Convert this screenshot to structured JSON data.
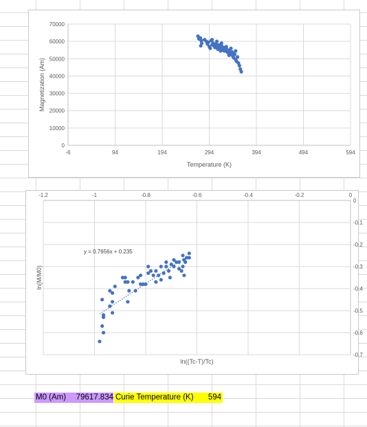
{
  "colors": {
    "marker": "#4472c4",
    "purple_cell": "#cc99ff",
    "yellow_cell": "#ffff00",
    "grid": "#d9d9d9"
  },
  "cells": {
    "m0_label": "M0 (Am)",
    "m0_value": "79617.834",
    "curie_label": "Curie Temperature (K)",
    "curie_value": "594"
  },
  "chart_data": [
    {
      "type": "scatter",
      "title": "",
      "xlabel": "Temperature (K)",
      "ylabel": "Magnetization (Am)",
      "xlim": [
        -6,
        594
      ],
      "ylim": [
        0,
        70000
      ],
      "xticks": [
        -6,
        94,
        194,
        294,
        394,
        494,
        594
      ],
      "yticks": [
        0,
        10000,
        20000,
        30000,
        40000,
        50000,
        60000,
        70000
      ],
      "grid": "major horizontal and vertical",
      "legend": "none",
      "series": [
        {
          "points": [
            [
              270,
              63000
            ],
            [
              272,
              61500
            ],
            [
              275,
              62000
            ],
            [
              277,
              60500
            ],
            [
              278,
              59000
            ],
            [
              276,
              57500
            ],
            [
              288,
              60000
            ],
            [
              290,
              58500
            ],
            [
              292,
              59500
            ],
            [
              294,
              57000
            ],
            [
              296,
              56000
            ],
            [
              298,
              60500
            ],
            [
              300,
              58000
            ],
            [
              302,
              59000
            ],
            [
              304,
              57500
            ],
            [
              306,
              56500
            ],
            [
              308,
              58500
            ],
            [
              310,
              57000
            ],
            [
              312,
              55500
            ],
            [
              314,
              58000
            ],
            [
              316,
              57000
            ],
            [
              318,
              56000
            ],
            [
              320,
              57500
            ],
            [
              322,
              55000
            ],
            [
              324,
              56500
            ],
            [
              326,
              54500
            ],
            [
              328,
              55500
            ],
            [
              330,
              56000
            ],
            [
              332,
              54000
            ],
            [
              334,
              53500
            ],
            [
              336,
              55000
            ],
            [
              338,
              53500
            ],
            [
              340,
              52500
            ],
            [
              342,
              54000
            ],
            [
              344,
              51500
            ],
            [
              346,
              50500
            ],
            [
              348,
              52500
            ],
            [
              350,
              49500
            ],
            [
              352,
              48500
            ],
            [
              354,
              51000
            ],
            [
              356,
              47500
            ],
            [
              358,
              46000
            ],
            [
              360,
              44000
            ],
            [
              362,
              42500
            ],
            [
              346,
              53000
            ],
            [
              350,
              54500
            ],
            [
              340,
              56000
            ],
            [
              330,
              57000
            ],
            [
              320,
              59000
            ],
            [
              310,
              60000
            ],
            [
              300,
              61000
            ],
            [
              284,
              61000
            ],
            [
              318,
              54500
            ],
            [
              336,
              52000
            ]
          ]
        }
      ]
    },
    {
      "type": "scatter",
      "title": "",
      "xlabel": "ln((Tc-T)/Tc)",
      "ylabel": "ln(M/M0)",
      "xlim": [
        -1.2,
        0
      ],
      "ylim": [
        -0.7,
        0
      ],
      "xticks": [
        -1.2,
        -1,
        -0.8,
        -0.6,
        -0.4,
        -0.2,
        0
      ],
      "yticks": [
        0,
        -0.1,
        -0.2,
        -0.3,
        -0.4,
        -0.5,
        -0.6,
        -0.7
      ],
      "grid": "major horizontal and vertical",
      "legend": "none",
      "trendline": {
        "type": "linear",
        "slope": 0.7656,
        "intercept": 0.235,
        "equation": "y = 0.7656x + 0.235",
        "x_range": [
          -0.98,
          -0.65
        ]
      },
      "series": [
        {
          "points": [
            [
              -0.98,
              -0.64
            ],
            [
              -0.97,
              -0.57
            ],
            [
              -0.965,
              -0.6
            ],
            [
              -0.965,
              -0.53
            ],
            [
              -0.965,
              -0.52
            ],
            [
              -0.97,
              -0.45
            ],
            [
              -0.94,
              -0.48
            ],
            [
              -0.93,
              -0.51
            ],
            [
              -0.93,
              -0.46
            ],
            [
              -0.94,
              -0.41
            ],
            [
              -0.92,
              -0.39
            ],
            [
              -0.93,
              -0.42
            ],
            [
              -0.89,
              -0.35
            ],
            [
              -0.88,
              -0.35
            ],
            [
              -0.88,
              -0.37
            ],
            [
              -0.87,
              -0.46
            ],
            [
              -0.865,
              -0.41
            ],
            [
              -0.87,
              -0.37
            ],
            [
              -0.85,
              -0.37
            ],
            [
              -0.84,
              -0.41
            ],
            [
              -0.83,
              -0.35
            ],
            [
              -0.82,
              -0.38
            ],
            [
              -0.82,
              -0.34
            ],
            [
              -0.81,
              -0.38
            ],
            [
              -0.8,
              -0.38
            ],
            [
              -0.79,
              -0.33
            ],
            [
              -0.79,
              -0.3
            ],
            [
              -0.78,
              -0.32
            ],
            [
              -0.77,
              -0.34
            ],
            [
              -0.76,
              -0.37
            ],
            [
              -0.76,
              -0.32
            ],
            [
              -0.75,
              -0.34
            ],
            [
              -0.74,
              -0.3
            ],
            [
              -0.74,
              -0.36
            ],
            [
              -0.73,
              -0.33
            ],
            [
              -0.72,
              -0.28
            ],
            [
              -0.72,
              -0.3
            ],
            [
              -0.71,
              -0.32
            ],
            [
              -0.705,
              -0.35
            ],
            [
              -0.7,
              -0.29
            ],
            [
              -0.69,
              -0.27
            ],
            [
              -0.69,
              -0.3
            ],
            [
              -0.68,
              -0.28
            ],
            [
              -0.67,
              -0.28
            ],
            [
              -0.67,
              -0.31
            ],
            [
              -0.66,
              -0.32
            ],
            [
              -0.655,
              -0.25
            ],
            [
              -0.65,
              -0.27
            ],
            [
              -0.65,
              -0.34
            ],
            [
              -0.645,
              -0.28
            ],
            [
              -0.64,
              -0.26
            ],
            [
              -0.63,
              -0.24
            ],
            [
              -0.63,
              -0.26
            ],
            [
              -0.655,
              -0.3
            ]
          ]
        }
      ]
    }
  ]
}
